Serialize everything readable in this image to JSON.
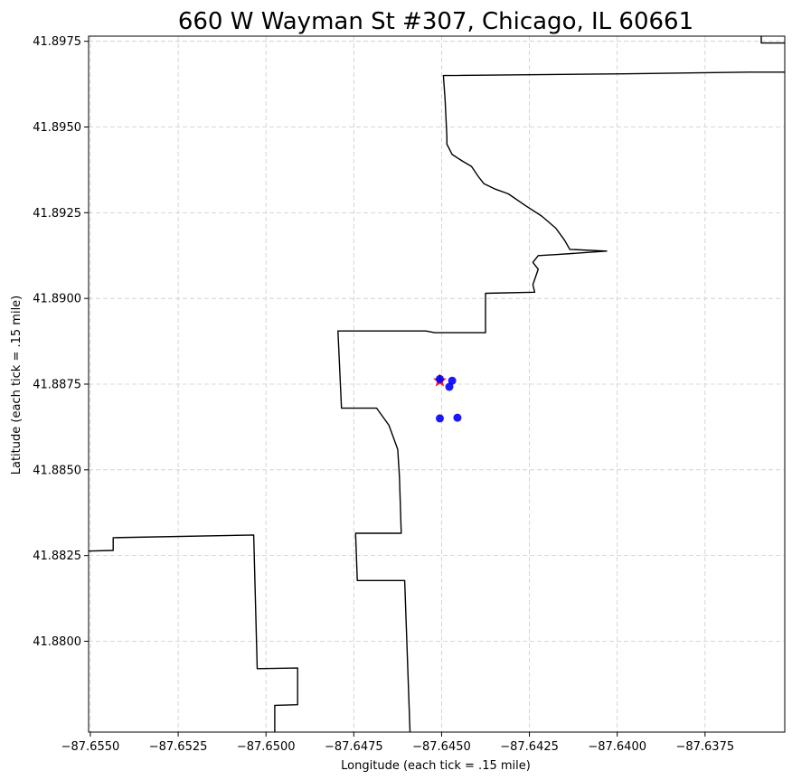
{
  "chart_data": {
    "type": "scatter",
    "title": "660 W Wayman St #307, Chicago, IL 60661",
    "xlabel": "Longitude (each tick = .15 mile)",
    "ylabel": "Latitude (each tick = .15 mile)",
    "xlim": [
      -87.65505,
      -87.63523
    ],
    "ylim": [
      41.87735,
      41.89765
    ],
    "grid": true,
    "xticks": [
      {
        "value": -87.655,
        "label": "−87.6550"
      },
      {
        "value": -87.6525,
        "label": "−87.6525"
      },
      {
        "value": -87.65,
        "label": "−87.6500"
      },
      {
        "value": -87.6475,
        "label": "−87.6475"
      },
      {
        "value": -87.645,
        "label": "−87.6450"
      },
      {
        "value": -87.6425,
        "label": "−87.6425"
      },
      {
        "value": -87.64,
        "label": "−87.6400"
      },
      {
        "value": -87.6375,
        "label": "−87.6375"
      }
    ],
    "yticks": [
      {
        "value": 41.88,
        "label": "41.8800"
      },
      {
        "value": 41.8825,
        "label": "41.8825"
      },
      {
        "value": 41.885,
        "label": "41.8850"
      },
      {
        "value": 41.8875,
        "label": "41.8875"
      },
      {
        "value": 41.89,
        "label": "41.8900"
      },
      {
        "value": 41.8925,
        "label": "41.8925"
      },
      {
        "value": 41.895,
        "label": "41.8950"
      },
      {
        "value": 41.8975,
        "label": "41.8975"
      }
    ],
    "series": [
      {
        "marker": "star",
        "color": "#ff0000",
        "points": [
          {
            "x": -87.64505,
            "y": 41.8876
          }
        ]
      },
      {
        "marker": "circle",
        "color": "#0000ff",
        "points": [
          {
            "x": -87.64505,
            "y": 41.88765
          },
          {
            "x": -87.6447,
            "y": 41.8876
          },
          {
            "x": -87.64478,
            "y": 41.88742
          },
          {
            "x": -87.64505,
            "y": 41.8865
          },
          {
            "x": -87.64455,
            "y": 41.88652
          }
        ]
      }
    ],
    "boundaries": [
      {
        "color": "#000000",
        "points": [
          [
            -87.65505,
            41.88263
          ],
          [
            -87.65435,
            41.88265
          ],
          [
            -87.65435,
            41.88302
          ],
          [
            -87.65035,
            41.8831
          ],
          [
            -87.65025,
            41.8792
          ],
          [
            -87.6491,
            41.87922
          ],
          [
            -87.6491,
            41.87815
          ],
          [
            -87.64975,
            41.87813
          ],
          [
            -87.64975,
            41.87735
          ]
        ]
      },
      {
        "color": "#000000",
        "points": [
          [
            -87.6459,
            41.87735
          ],
          [
            -87.64605,
            41.88177
          ],
          [
            -87.6474,
            41.88177
          ],
          [
            -87.64745,
            41.88315
          ],
          [
            -87.64615,
            41.88315
          ],
          [
            -87.6462,
            41.8848
          ],
          [
            -87.64625,
            41.8856
          ],
          [
            -87.6465,
            41.8863
          ],
          [
            -87.64685,
            41.8868
          ],
          [
            -87.64785,
            41.8868
          ],
          [
            -87.64795,
            41.88905
          ],
          [
            -87.64545,
            41.88905
          ],
          [
            -87.6452,
            41.889
          ],
          [
            -87.64375,
            41.889
          ],
          [
            -87.64375,
            41.89015
          ],
          [
            -87.64235,
            41.89018
          ],
          [
            -87.6424,
            41.8904
          ],
          [
            -87.64225,
            41.89085
          ],
          [
            -87.6424,
            41.89105
          ],
          [
            -87.64225,
            41.89125
          ],
          [
            -87.6417,
            41.89128
          ],
          [
            -87.6403,
            41.89138
          ],
          [
            -87.64135,
            41.89143
          ],
          [
            -87.6415,
            41.8917
          ],
          [
            -87.64175,
            41.89205
          ],
          [
            -87.64215,
            41.8924
          ],
          [
            -87.6426,
            41.8927
          ],
          [
            -87.6431,
            41.89305
          ],
          [
            -87.6435,
            41.8932
          ],
          [
            -87.6438,
            41.89335
          ],
          [
            -87.64395,
            41.89355
          ],
          [
            -87.64415,
            41.89385
          ],
          [
            -87.6444,
            41.894
          ],
          [
            -87.6447,
            41.8942
          ],
          [
            -87.64485,
            41.8945
          ],
          [
            -87.64485,
            41.8947
          ],
          [
            -87.6449,
            41.8958
          ],
          [
            -87.64495,
            41.8965
          ],
          [
            -87.6398,
            41.89655
          ],
          [
            -87.63625,
            41.8966
          ],
          [
            -87.63523,
            41.8966
          ]
        ]
      },
      {
        "color": "#000000",
        "points": [
          [
            -87.6359,
            41.89765
          ],
          [
            -87.6359,
            41.89745
          ],
          [
            -87.63523,
            41.89745
          ]
        ]
      }
    ]
  }
}
